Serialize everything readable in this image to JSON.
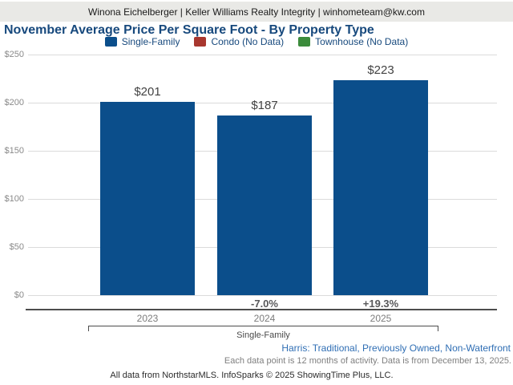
{
  "header": {
    "contact_line": "Winona Eichelberger | Keller Williams Realty Integrity | winhometeam@kw.com"
  },
  "chart_data": {
    "type": "bar",
    "title": "November Average Price Per Square Foot - By Property Type",
    "categories": [
      "2023",
      "2024",
      "2025"
    ],
    "series": [
      {
        "name": "Single-Family",
        "values": [
          201,
          187,
          223
        ],
        "color": "#0B4E8B"
      },
      {
        "name": "Condo",
        "values": [
          null,
          null,
          null
        ],
        "color": "#A8372F",
        "no_data": true
      },
      {
        "name": "Townhouse",
        "values": [
          null,
          null,
          null
        ],
        "color": "#3C8C3C",
        "no_data": true
      }
    ],
    "bar_value_labels": [
      "$201",
      "$187",
      "$223"
    ],
    "pct_change_labels": [
      null,
      "-7.0%",
      "+19.3%"
    ],
    "legend": [
      {
        "label": "Single-Family",
        "color": "#0B4E8B"
      },
      {
        "label": "Condo (No Data)",
        "color": "#A8372F"
      },
      {
        "label": "Townhouse (No Data)",
        "color": "#3C8C3C"
      }
    ],
    "yticks": [
      {
        "label": "$0",
        "value": 0
      },
      {
        "label": "$50",
        "value": 50
      },
      {
        "label": "$100",
        "value": 100
      },
      {
        "label": "$150",
        "value": 150
      },
      {
        "label": "$200",
        "value": 200
      },
      {
        "label": "$250",
        "value": 250
      }
    ],
    "ylim": [
      0,
      250
    ],
    "grid": true,
    "legend_position": "top",
    "group_label": "Single-Family"
  },
  "footer": {
    "filter_line": "Harris: Traditional, Previously Owned, Non-Waterfront",
    "data_note": "Each data point is 12 months of activity. Data is from December 13, 2025.",
    "attribution": "All data from NorthstarMLS. InfoSparks © 2025 ShowingTime Plus, LLC."
  }
}
